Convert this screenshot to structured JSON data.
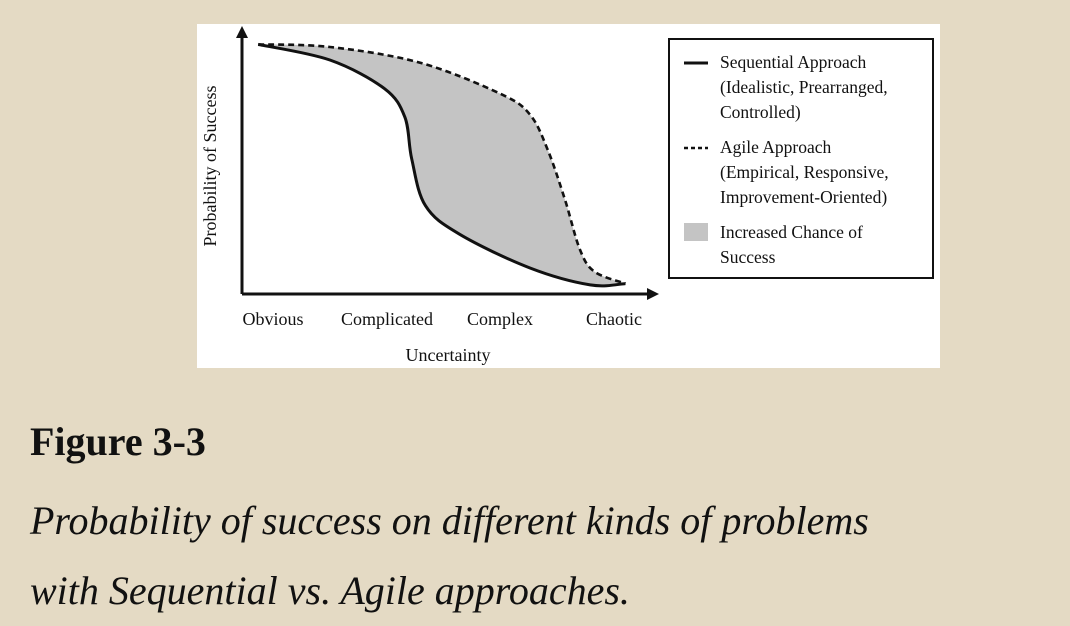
{
  "chart_data": {
    "type": "area",
    "xlabel": "Uncertainty",
    "ylabel": "Probability of Success",
    "categories": [
      "Obvious",
      "Complicated",
      "Complex",
      "Chaotic"
    ],
    "grid": false,
    "legend_placement": "right",
    "series": [
      {
        "name": "Sequential Approach (Idealistic, Prearranged, Controlled)",
        "style": "solid",
        "color": "#111111",
        "points": [
          [
            -0.13,
            0.96
          ],
          [
            0.5,
            0.9
          ],
          [
            0.98,
            0.79
          ],
          [
            1.16,
            0.68
          ],
          [
            1.22,
            0.52
          ],
          [
            1.34,
            0.34
          ],
          [
            1.64,
            0.23
          ],
          [
            2.26,
            0.1
          ],
          [
            2.79,
            0.035
          ],
          [
            3.1,
            0.04
          ]
        ]
      },
      {
        "name": "Agile Approach (Empirical, Responsive, Improvement-Oriented)",
        "style": "dashed",
        "color": "#111111",
        "points": [
          [
            -0.13,
            0.96
          ],
          [
            0.5,
            0.95
          ],
          [
            1.29,
            0.89
          ],
          [
            2.0,
            0.77
          ],
          [
            2.26,
            0.69
          ],
          [
            2.42,
            0.55
          ],
          [
            2.57,
            0.36
          ],
          [
            2.7,
            0.17
          ],
          [
            2.83,
            0.085
          ],
          [
            3.1,
            0.04
          ]
        ]
      }
    ],
    "area": {
      "name": "Increased Chance of Success",
      "color": "#c4c4c4"
    }
  },
  "legend": {
    "sequential": [
      "Sequential Approach",
      "(Idealistic, Prearranged,",
      "Controlled)"
    ],
    "agile": [
      "Agile Approach",
      "(Empirical, Responsive,",
      "Improvement-Oriented)"
    ],
    "area": [
      "Increased Chance of",
      "Success"
    ]
  },
  "figure": {
    "number": "Figure 3-3",
    "caption_lines": [
      "Probability of success on different kinds of problems",
      "with Sequential vs. Agile approaches."
    ]
  }
}
